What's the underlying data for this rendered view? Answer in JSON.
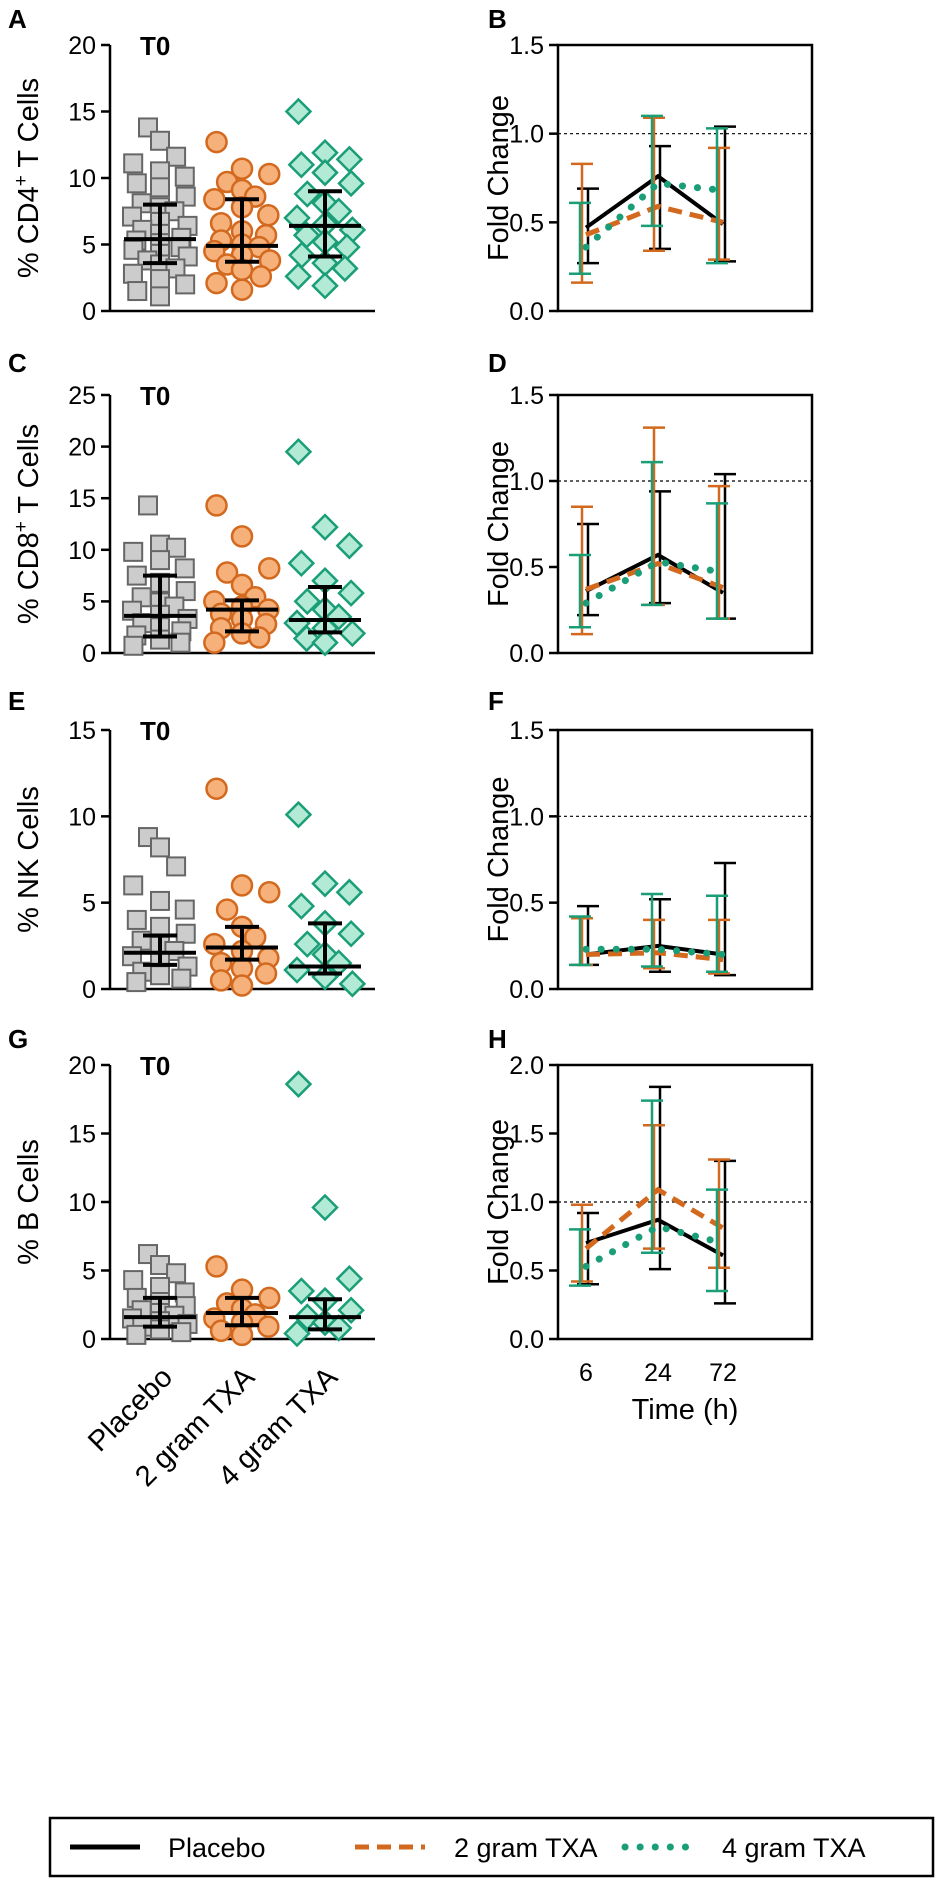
{
  "legend": [
    {
      "name": "Placebo",
      "color": "#000000",
      "style": "solid"
    },
    {
      "name": "2 gram TXA",
      "color": "#d2691e",
      "style": "dashed"
    },
    {
      "name": "4 gram TXA",
      "color": "#1a9e77",
      "style": "dotted"
    }
  ],
  "colors": {
    "placebo": "#000000",
    "gram2": "#d2691e",
    "gram4": "#1a9e77",
    "placebo_fill": "#cccccc",
    "gram2_fill": "#f6b07a",
    "gram4_fill": "#b3ead6"
  },
  "chart_data": [
    {
      "panel": "A",
      "type": "scatter",
      "subtitle": "T0",
      "ylabel_prefix": "% CD4",
      "ylabel_sup": "+",
      "ylabel_suffix": " T Cells",
      "ylim": [
        0,
        20
      ],
      "yticks": [
        0,
        5,
        10,
        15,
        20
      ],
      "categories": [
        "Placebo",
        "2 gram TXA",
        "4 gram TXA"
      ],
      "groups": [
        {
          "name": "Placebo",
          "values": [
            13.8,
            12.8,
            11.6,
            11.1,
            10.5,
            10.1,
            9.6,
            9.3,
            8.6,
            8.1,
            7.8,
            7.5,
            7.1,
            6.7,
            6.4,
            6.1,
            5.8,
            5.5,
            5.3,
            5.1,
            4.8,
            4.6,
            4.3,
            4.1,
            3.8,
            3.5,
            3.2,
            2.8,
            2.4,
            2.0,
            1.5,
            1.1
          ],
          "median": 5.4,
          "q1": 3.6,
          "q3": 8.0
        },
        {
          "name": "2 gram TXA",
          "values": [
            12.7,
            10.7,
            10.3,
            9.7,
            9.1,
            8.6,
            8.4,
            7.8,
            7.2,
            6.6,
            6.0,
            5.7,
            5.3,
            5.0,
            4.8,
            4.5,
            4.2,
            3.8,
            3.5,
            3.1,
            2.6,
            2.1,
            1.6
          ],
          "median": 4.9,
          "q1": 3.7,
          "q3": 8.4
        },
        {
          "name": "4 gram TXA",
          "values": [
            15.0,
            11.9,
            11.4,
            11.0,
            10.4,
            9.6,
            8.8,
            8.1,
            7.5,
            7.0,
            6.5,
            6.1,
            5.7,
            5.2,
            4.8,
            4.2,
            3.6,
            3.2,
            2.6,
            1.9
          ],
          "median": 6.4,
          "q1": 4.1,
          "q3": 9.0
        }
      ]
    },
    {
      "panel": "B",
      "type": "line",
      "ylabel": "Fold Change",
      "ylim": [
        0,
        1.5
      ],
      "yticks": [
        0.0,
        0.5,
        1.0,
        1.5
      ],
      "reference_line": 1.0,
      "x": [
        6,
        24,
        72
      ],
      "series": [
        {
          "name": "Placebo",
          "values": [
            0.47,
            0.76,
            0.49
          ],
          "lower": [
            0.27,
            0.35,
            0.28
          ],
          "upper": [
            0.69,
            0.93,
            1.04
          ]
        },
        {
          "name": "2 gram TXA",
          "values": [
            0.43,
            0.59,
            0.5
          ],
          "lower": [
            0.16,
            0.34,
            0.29
          ],
          "upper": [
            0.83,
            1.09,
            0.92
          ]
        },
        {
          "name": "4 gram TXA",
          "values": [
            0.36,
            0.72,
            0.68
          ],
          "lower": [
            0.21,
            0.48,
            0.27
          ],
          "upper": [
            0.61,
            1.1,
            1.03
          ]
        }
      ]
    },
    {
      "panel": "C",
      "type": "scatter",
      "subtitle": "T0",
      "ylabel_prefix": "% CD8",
      "ylabel_sup": "+",
      "ylabel_suffix": " T Cells",
      "ylim": [
        0,
        25
      ],
      "yticks": [
        0,
        5,
        10,
        15,
        20,
        25
      ],
      "categories": [
        "Placebo",
        "2 gram TXA",
        "4 gram TXA"
      ],
      "groups": [
        {
          "name": "Placebo",
          "values": [
            14.3,
            10.5,
            10.2,
            9.8,
            9.0,
            8.2,
            7.5,
            6.8,
            6.0,
            5.4,
            4.9,
            4.5,
            4.1,
            3.7,
            3.3,
            2.9,
            2.5,
            2.1,
            1.7,
            1.3,
            1.0,
            0.7
          ],
          "median": 3.6,
          "q1": 1.6,
          "q3": 7.5
        },
        {
          "name": "2 gram TXA",
          "values": [
            14.3,
            11.3,
            8.2,
            7.8,
            6.6,
            5.4,
            5.0,
            4.5,
            4.2,
            3.8,
            3.3,
            2.8,
            2.4,
            1.9,
            1.5,
            1.0
          ],
          "median": 4.2,
          "q1": 2.1,
          "q3": 5.1
        },
        {
          "name": "4 gram TXA",
          "values": [
            19.5,
            12.2,
            10.4,
            8.7,
            7.0,
            5.8,
            5.0,
            4.2,
            3.5,
            2.9,
            2.4,
            1.9,
            1.4,
            1.0
          ],
          "median": 3.2,
          "q1": 2.0,
          "q3": 6.4
        }
      ]
    },
    {
      "panel": "D",
      "type": "line",
      "ylabel": "Fold Change",
      "ylim": [
        0,
        1.5
      ],
      "yticks": [
        0.0,
        0.5,
        1.0,
        1.5
      ],
      "reference_line": 1.0,
      "x": [
        6,
        24,
        72
      ],
      "series": [
        {
          "name": "Placebo",
          "values": [
            0.36,
            0.57,
            0.35
          ],
          "lower": [
            0.22,
            0.29,
            0.2
          ],
          "upper": [
            0.75,
            0.94,
            1.04
          ]
        },
        {
          "name": "2 gram TXA",
          "values": [
            0.37,
            0.52,
            0.38
          ],
          "lower": [
            0.11,
            0.28,
            0.2
          ],
          "upper": [
            0.85,
            1.31,
            0.97
          ]
        },
        {
          "name": "4 gram TXA",
          "values": [
            0.29,
            0.53,
            0.47
          ],
          "lower": [
            0.15,
            0.28,
            0.2
          ],
          "upper": [
            0.57,
            1.11,
            0.87
          ]
        }
      ]
    },
    {
      "panel": "E",
      "type": "scatter",
      "subtitle": "T0",
      "ylabel": "% NK Cells",
      "ylim": [
        0,
        15
      ],
      "yticks": [
        0,
        5,
        10,
        15
      ],
      "categories": [
        "Placebo",
        "2 gram TXA",
        "4 gram TXA"
      ],
      "groups": [
        {
          "name": "Placebo",
          "values": [
            8.8,
            8.2,
            7.1,
            6.0,
            5.1,
            4.6,
            4.0,
            3.6,
            3.2,
            2.8,
            2.5,
            2.2,
            1.9,
            1.6,
            1.3,
            1.0,
            0.8,
            0.6,
            0.4
          ],
          "median": 2.1,
          "q1": 1.4,
          "q3": 3.1
        },
        {
          "name": "2 gram TXA",
          "values": [
            11.6,
            6.0,
            5.6,
            4.6,
            3.6,
            3.0,
            2.6,
            2.2,
            1.8,
            1.5,
            1.2,
            0.9,
            0.5,
            0.2
          ],
          "median": 2.4,
          "q1": 1.7,
          "q3": 3.6
        },
        {
          "name": "4 gram TXA",
          "values": [
            10.1,
            6.1,
            5.6,
            4.8,
            3.8,
            3.2,
            2.6,
            2.0,
            1.5,
            1.1,
            0.7,
            0.3
          ],
          "median": 1.3,
          "q1": 0.9,
          "q3": 3.8
        }
      ]
    },
    {
      "panel": "F",
      "type": "line",
      "ylabel": "Fold Change",
      "ylim": [
        0,
        1.5
      ],
      "yticks": [
        0.0,
        0.5,
        1.0,
        1.5
      ],
      "reference_line": 1.0,
      "x": [
        6,
        24,
        72
      ],
      "series": [
        {
          "name": "Placebo",
          "values": [
            0.2,
            0.25,
            0.2
          ],
          "lower": [
            0.14,
            0.1,
            0.08
          ],
          "upper": [
            0.48,
            0.52,
            0.73
          ]
        },
        {
          "name": "2 gram TXA",
          "values": [
            0.2,
            0.21,
            0.17
          ],
          "lower": [
            0.14,
            0.12,
            0.09
          ],
          "upper": [
            0.41,
            0.4,
            0.4
          ]
        },
        {
          "name": "4 gram TXA",
          "values": [
            0.23,
            0.23,
            0.2
          ],
          "lower": [
            0.14,
            0.13,
            0.1
          ],
          "upper": [
            0.42,
            0.55,
            0.54
          ]
        }
      ]
    },
    {
      "panel": "G",
      "type": "scatter",
      "subtitle": "T0",
      "ylabel": "% B Cells",
      "ylim": [
        0,
        20
      ],
      "yticks": [
        0,
        5,
        10,
        15,
        20
      ],
      "categories": [
        "Placebo",
        "2 gram TXA",
        "4 gram TXA"
      ],
      "groups": [
        {
          "name": "Placebo",
          "values": [
            6.2,
            5.4,
            4.8,
            4.3,
            3.8,
            3.4,
            3.0,
            2.7,
            2.4,
            2.1,
            1.9,
            1.7,
            1.5,
            1.3,
            1.1,
            0.9,
            0.7,
            0.5,
            0.3
          ],
          "median": 1.6,
          "q1": 0.9,
          "q3": 3.0
        },
        {
          "name": "2 gram TXA",
          "values": [
            5.3,
            3.6,
            3.0,
            2.6,
            2.2,
            1.8,
            1.5,
            1.2,
            0.9,
            0.6,
            0.3
          ],
          "median": 1.9,
          "q1": 1.0,
          "q3": 3.0
        },
        {
          "name": "4 gram TXA",
          "values": [
            18.6,
            9.6,
            4.4,
            3.5,
            2.8,
            2.1,
            1.6,
            1.2,
            0.8,
            0.4
          ],
          "median": 1.6,
          "q1": 0.7,
          "q3": 2.9
        }
      ]
    },
    {
      "panel": "H",
      "type": "line",
      "ylabel": "Fold Change",
      "ylim": [
        0,
        2.0
      ],
      "yticks": [
        0.0,
        0.5,
        1.0,
        1.5,
        2.0
      ],
      "reference_line": 1.0,
      "x": [
        6,
        24,
        72
      ],
      "xlabel": "Time (h)",
      "series": [
        {
          "name": "Placebo",
          "values": [
            0.7,
            0.87,
            0.61
          ],
          "lower": [
            0.4,
            0.51,
            0.26
          ],
          "upper": [
            0.92,
            1.84,
            1.3
          ]
        },
        {
          "name": "2 gram TXA",
          "values": [
            0.66,
            1.09,
            0.81
          ],
          "lower": [
            0.42,
            0.66,
            0.52
          ],
          "upper": [
            0.98,
            1.56,
            1.31
          ]
        },
        {
          "name": "4 gram TXA",
          "values": [
            0.53,
            0.82,
            0.7
          ],
          "lower": [
            0.39,
            0.63,
            0.35
          ],
          "upper": [
            0.8,
            1.74,
            1.09
          ]
        }
      ]
    }
  ]
}
